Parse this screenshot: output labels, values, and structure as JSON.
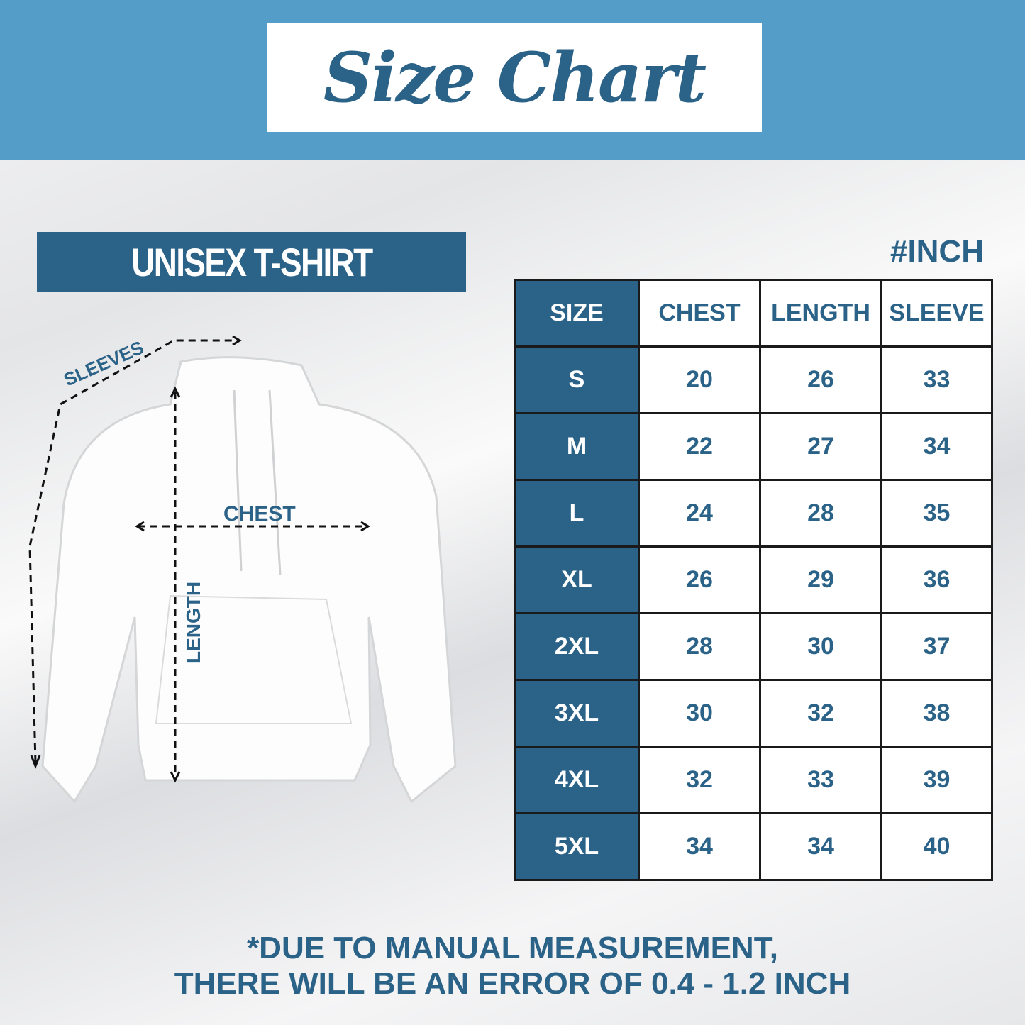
{
  "header": {
    "title": "Size Chart"
  },
  "product_label": "UNISEX T-SHIRT",
  "unit_label": "#INCH",
  "diagram": {
    "sleeves": "SLEEVES",
    "chest": "CHEST",
    "length": "LENGTH"
  },
  "colors": {
    "band": "#559dc9",
    "accent": "#2b6287"
  },
  "table": {
    "headers": [
      "SIZE",
      "CHEST",
      "LENGTH",
      "SLEEVE"
    ],
    "rows": [
      [
        "S",
        "20",
        "26",
        "33"
      ],
      [
        "M",
        "22",
        "27",
        "34"
      ],
      [
        "L",
        "24",
        "28",
        "35"
      ],
      [
        "XL",
        "26",
        "29",
        "36"
      ],
      [
        "2XL",
        "28",
        "30",
        "37"
      ],
      [
        "3XL",
        "30",
        "32",
        "38"
      ],
      [
        "4XL",
        "32",
        "33",
        "39"
      ],
      [
        "5XL",
        "34",
        "34",
        "40"
      ]
    ]
  },
  "note": {
    "line1": "*DUE TO MANUAL MEASUREMENT,",
    "line2": "THERE WILL BE AN ERROR OF 0.4 - 1.2 INCH"
  }
}
